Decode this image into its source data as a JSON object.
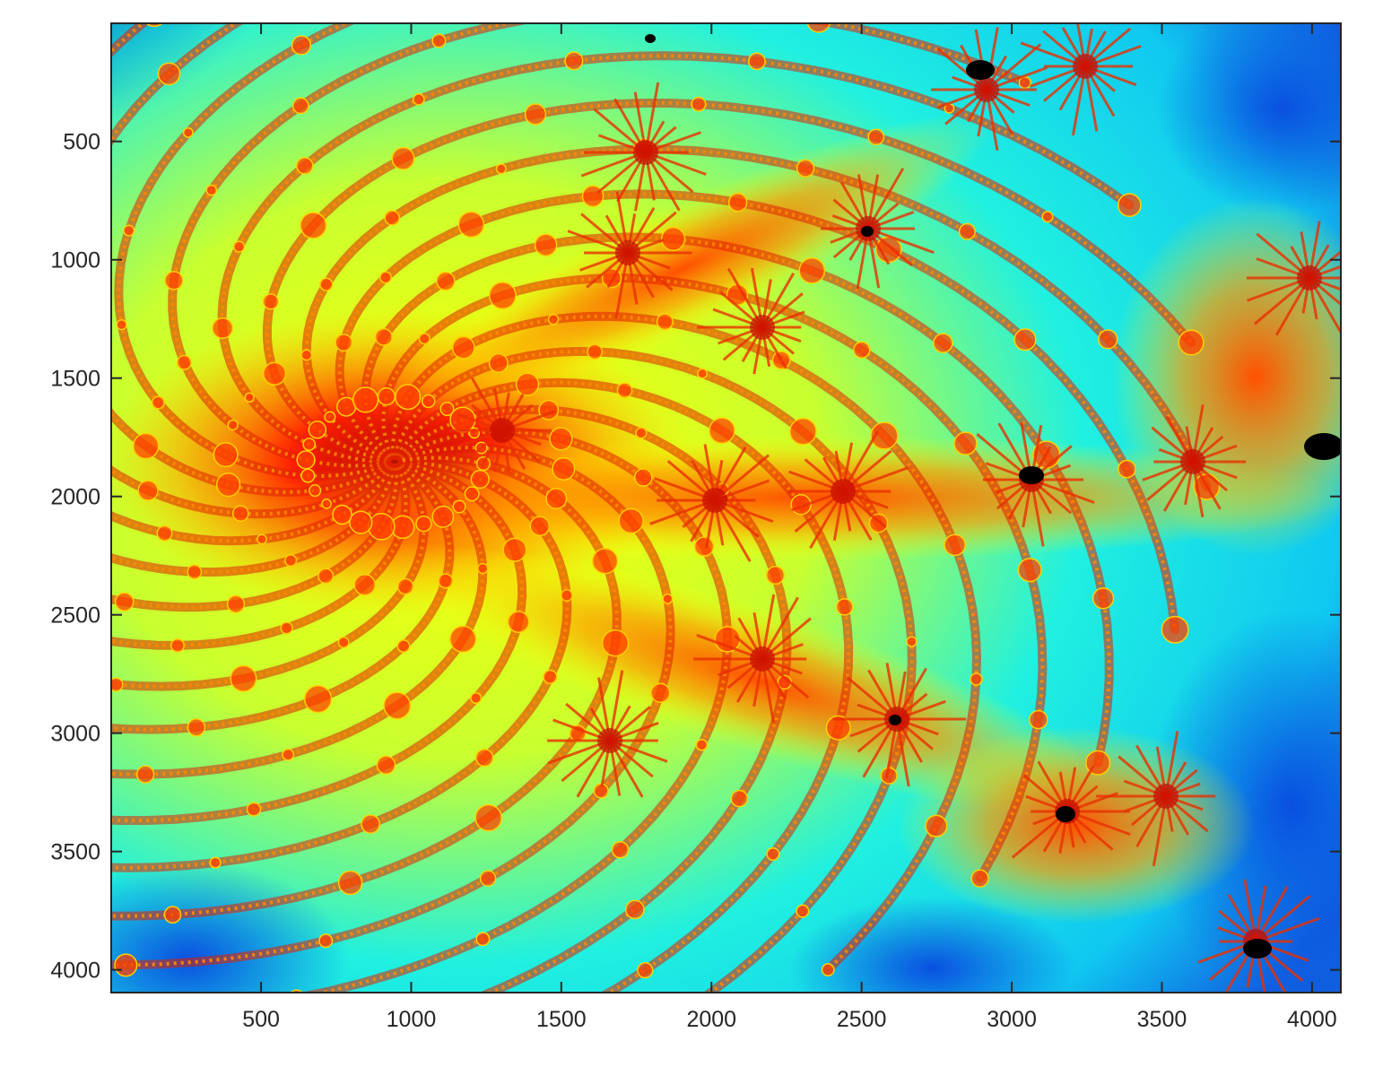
{
  "chart_data": {
    "type": "heatmap",
    "title": "",
    "xlabel": "",
    "ylabel": "",
    "colormap": "jet",
    "xlim": [
      1,
      4096
    ],
    "ylim": [
      1,
      4096
    ],
    "y_direction": "reversed",
    "x_ticks": [
      500,
      1000,
      1500,
      2000,
      2500,
      3000,
      3500,
      4000
    ],
    "x_tick_labels": [
      "500",
      "1000",
      "1500",
      "2000",
      "2500",
      "3000",
      "3500",
      "4000"
    ],
    "y_ticks": [
      500,
      1000,
      1500,
      2000,
      2500,
      3000,
      3500,
      4000
    ],
    "y_tick_labels": [
      "500",
      "1000",
      "1500",
      "2000",
      "2500",
      "3000",
      "3500",
      "4000"
    ],
    "grid": false,
    "colors": {
      "axis": "#262626",
      "background": "#ffffff",
      "black_regions": "#000000"
    }
  }
}
